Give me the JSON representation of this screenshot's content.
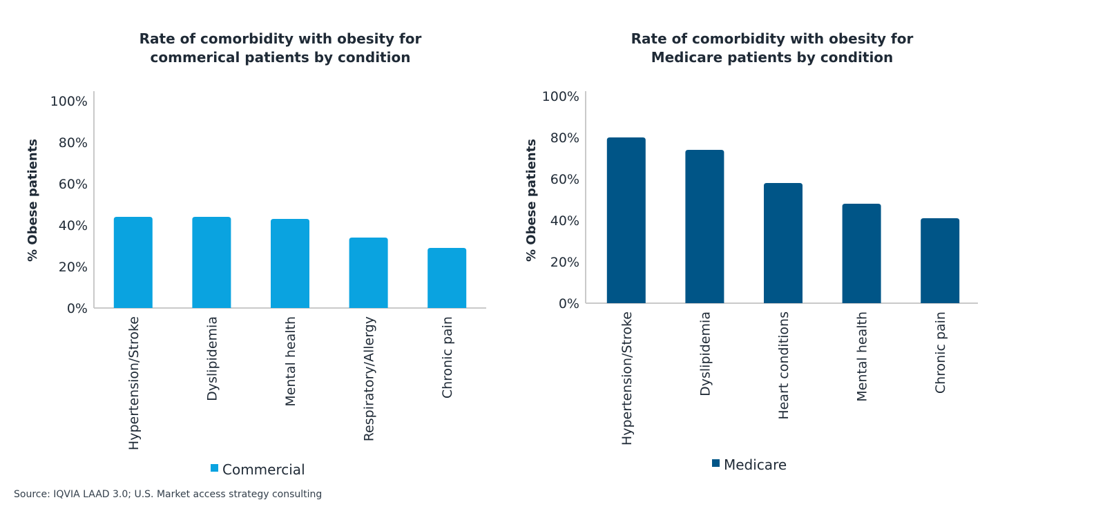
{
  "chart_data": [
    {
      "type": "bar",
      "title": "Rate of comorbidity with obesity for commerical patients by condition",
      "title_lines": [
        "Rate of comorbidity with obesity for",
        "commerical patients by condition"
      ],
      "ylabel": "% Obese patients",
      "xlabel": "",
      "ylim": [
        0,
        100
      ],
      "y_ticks": [
        0,
        20,
        40,
        60,
        80,
        100
      ],
      "y_tick_labels": [
        "0%",
        "20%",
        "40%",
        "60%",
        "80%",
        "100%"
      ],
      "categories": [
        "Hypertension/Stroke",
        "Dyslipidemia",
        "Mental health",
        "Respiratory/Allergy",
        "Chronic pain"
      ],
      "series": [
        {
          "name": "Commercial",
          "color": "#0aa3e0",
          "values": [
            44,
            44,
            43,
            34,
            29
          ]
        }
      ],
      "grid": false,
      "legend_position": "bottom"
    },
    {
      "type": "bar",
      "title": "Rate of comorbidity with obesity for Medicare patients by condition",
      "title_lines": [
        "Rate of comorbidity with obesity for",
        "Medicare patients by condition"
      ],
      "ylabel": "% Obese patients",
      "xlabel": "",
      "ylim": [
        0,
        100
      ],
      "y_ticks": [
        0,
        20,
        40,
        60,
        80,
        100
      ],
      "y_tick_labels": [
        "0%",
        "20%",
        "40%",
        "60%",
        "80%",
        "100%"
      ],
      "categories": [
        "Hypertension/Stroke",
        "Dyslipidemia",
        "Heart conditions",
        "Mental health",
        "Chronic pain"
      ],
      "series": [
        {
          "name": "Medicare",
          "color": "#005587",
          "values": [
            80,
            74,
            58,
            48,
            41
          ]
        }
      ],
      "grid": false,
      "legend_position": "bottom"
    }
  ],
  "source_note": "Source: IQVIA LAAD 3.0; U.S. Market access strategy consulting"
}
